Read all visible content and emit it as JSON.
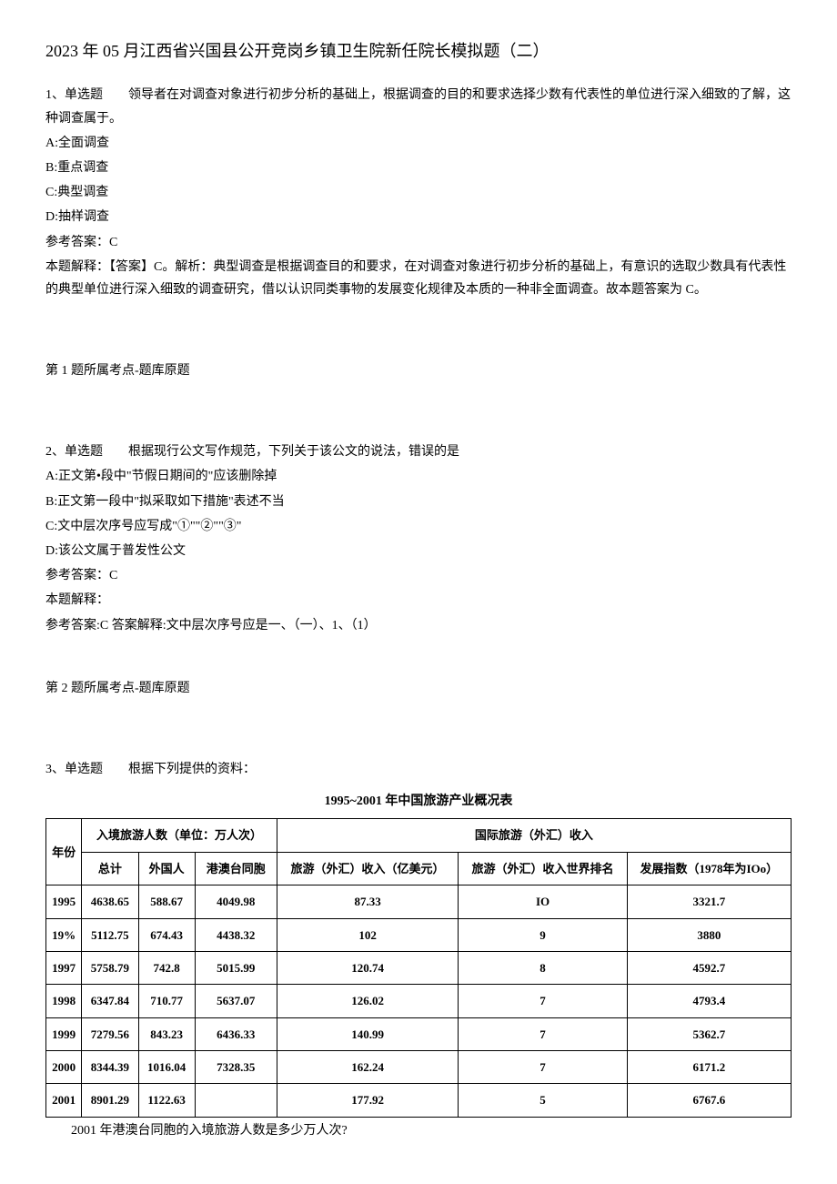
{
  "title": "2023 年 05 月江西省兴国县公开竞岗乡镇卫生院新任院长模拟题（二）",
  "q1": {
    "stem": "1、单选题　　领导者在对调查对象进行初步分析的基础上，根据调查的目的和要求选择少数有代表性的单位进行深入细致的了解，这种调查属于。",
    "optA": "A:全面调查",
    "optB": "B:重点调查",
    "optC": "C:典型调查",
    "optD": "D:抽样调查",
    "ans": "参考答案：C",
    "explain": "本题解释：【答案】C。解析：典型调查是根据调查目的和要求，在对调查对象进行初步分析的基础上，有意识的选取少数具有代表性的典型单位进行深入细致的调查研究，借以认识同类事物的发展变化规律及本质的一种非全面调查。故本题答案为 C。",
    "tag": "第 1 题所属考点-题库原题"
  },
  "q2": {
    "stem": "2、单选题　　根据现行公文写作规范，下列关于该公文的说法，错误的是",
    "optA": "A:正文第•段中\"节假日期间的\"应该删除掉",
    "optB": "B:正文第一段中\"拟采取如下措施\"表述不当",
    "optC": "C:文中层次序号应写成\"①\"\"②\"\"③\"",
    "optD": "D:该公文属于普发性公文",
    "ans": "参考答案：C",
    "explain1": "本题解释：",
    "explain2": "参考答案:C 答案解释:文中层次序号应是一、（一）、1、（1）",
    "tag": "第 2 题所属考点-题库原题"
  },
  "q3": {
    "stem": "3、单选题　　根据下列提供的资料：",
    "tableTitle": "1995~2001 年中国旅游产业概况表",
    "headers": {
      "year": "年份",
      "inbound": "入境旅游人数（单位：万人次）",
      "intl": "国际旅游（外汇）收入",
      "total": "总计",
      "foreign": "外国人",
      "hkmotw": "港澳台同胞",
      "income": "旅游（外汇）收入（亿美元）",
      "rank": "旅游（外汇）收入世界排名",
      "index": "发展指数（1978年为IOo）"
    },
    "rows": [
      {
        "year": "1995",
        "total": "4638.65",
        "foreign": "588.67",
        "hkmotw": "4049.98",
        "income": "87.33",
        "rank": "IO",
        "index": "3321.7"
      },
      {
        "year": "19%",
        "total": "5112.75",
        "foreign": "674.43",
        "hkmotw": "4438.32",
        "income": "102",
        "rank": "9",
        "index": "3880"
      },
      {
        "year": "1997",
        "total": "5758.79",
        "foreign": "742.8",
        "hkmotw": "5015.99",
        "income": "120.74",
        "rank": "8",
        "index": "4592.7"
      },
      {
        "year": "1998",
        "total": "6347.84",
        "foreign": "710.77",
        "hkmotw": "5637.07",
        "income": "126.02",
        "rank": "7",
        "index": "4793.4"
      },
      {
        "year": "1999",
        "total": "7279.56",
        "foreign": "843.23",
        "hkmotw": "6436.33",
        "income": "140.99",
        "rank": "7",
        "index": "5362.7"
      },
      {
        "year": "2000",
        "total": "8344.39",
        "foreign": "1016.04",
        "hkmotw": "7328.35",
        "income": "162.24",
        "rank": "7",
        "index": "6171.2"
      },
      {
        "year": "2001",
        "total": "8901.29",
        "foreign": "1122.63",
        "hkmotw": "",
        "income": "177.92",
        "rank": "5",
        "index": "6767.6"
      }
    ],
    "question": "2001 年港澳台同胞的入境旅游人数是多少万人次?"
  }
}
